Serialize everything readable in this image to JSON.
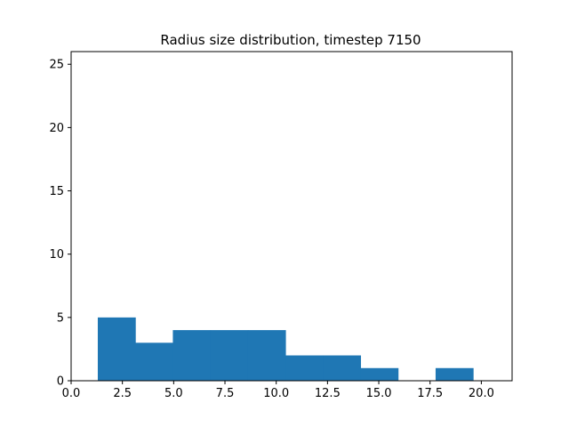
{
  "chart_data": {
    "type": "bar",
    "title": "Radius size distribution, timestep 7150",
    "xlabel": "",
    "ylabel": "",
    "xlim": [
      0.0,
      21.5
    ],
    "ylim": [
      0,
      26
    ],
    "x_ticks": [
      0.0,
      2.5,
      5.0,
      7.5,
      10.0,
      12.5,
      15.0,
      17.5,
      20.0
    ],
    "x_tick_labels": [
      "0.0",
      "2.5",
      "5.0",
      "7.5",
      "10.0",
      "12.5",
      "15.0",
      "17.5",
      "20.0"
    ],
    "y_ticks": [
      0,
      5,
      10,
      15,
      20,
      25
    ],
    "y_tick_labels": [
      "0",
      "5",
      "10",
      "15",
      "20",
      "25"
    ],
    "grid": false,
    "color": "#1f77b4",
    "bins": [
      {
        "x0": 1.3,
        "x1": 3.13,
        "count": 5
      },
      {
        "x0": 3.13,
        "x1": 4.96,
        "count": 3
      },
      {
        "x0": 4.96,
        "x1": 6.79,
        "count": 4
      },
      {
        "x0": 6.79,
        "x1": 8.62,
        "count": 4
      },
      {
        "x0": 8.62,
        "x1": 10.45,
        "count": 4
      },
      {
        "x0": 10.45,
        "x1": 12.28,
        "count": 2
      },
      {
        "x0": 12.28,
        "x1": 14.11,
        "count": 2
      },
      {
        "x0": 14.11,
        "x1": 15.94,
        "count": 1
      },
      {
        "x0": 15.94,
        "x1": 17.77,
        "count": 0
      },
      {
        "x0": 17.77,
        "x1": 19.6,
        "count": 1
      }
    ]
  }
}
